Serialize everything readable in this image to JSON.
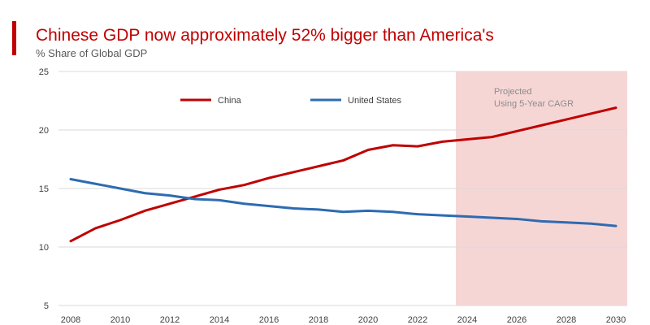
{
  "chart_data": {
    "type": "line",
    "title": "Chinese GDP now approximately 52% bigger than America's",
    "subtitle": "% Share of Global GDP",
    "xlabel": "",
    "ylabel": "",
    "xlim": [
      2008,
      2030
    ],
    "ylim": [
      5,
      25
    ],
    "yticks": [
      "5",
      "10",
      "15",
      "20",
      "25"
    ],
    "xticks": [
      "2008",
      "2010",
      "2012",
      "2014",
      "2016",
      "2018",
      "2020",
      "2022",
      "2024",
      "2026",
      "2028",
      "2030"
    ],
    "x": [
      2008,
      2009,
      2010,
      2011,
      2012,
      2013,
      2014,
      2015,
      2016,
      2017,
      2018,
      2019,
      2020,
      2021,
      2022,
      2023,
      2024,
      2025,
      2026,
      2027,
      2028,
      2029,
      2030
    ],
    "series": [
      {
        "name": "China",
        "color": "#c00000",
        "values": [
          10.5,
          11.6,
          12.3,
          13.1,
          13.7,
          14.3,
          14.9,
          15.3,
          15.9,
          16.4,
          16.9,
          17.4,
          18.3,
          18.7,
          18.6,
          19.0,
          19.2,
          19.4,
          19.9,
          20.4,
          20.9,
          21.4,
          21.9
        ]
      },
      {
        "name": "United States",
        "color": "#2e6bb1",
        "values": [
          15.8,
          15.4,
          15.0,
          14.6,
          14.4,
          14.1,
          14.0,
          13.7,
          13.5,
          13.3,
          13.2,
          13.0,
          13.1,
          13.0,
          12.8,
          12.7,
          12.6,
          12.5,
          12.4,
          12.2,
          12.1,
          12.0,
          11.8
        ]
      }
    ],
    "shaded_region": {
      "from": 2024,
      "to": 2030,
      "line1": "Projected",
      "line2": "Using 5-Year CAGR",
      "color": "#f6d6d5"
    },
    "legend": {
      "placement": "top-center"
    },
    "grid": {
      "horizontal": true,
      "vertical": false
    }
  },
  "colors": {
    "accent_bar": "#c00000",
    "title": "#c00000",
    "subtitle": "#595959",
    "grid": "#d9d9d9",
    "tick_text": "#404040"
  }
}
